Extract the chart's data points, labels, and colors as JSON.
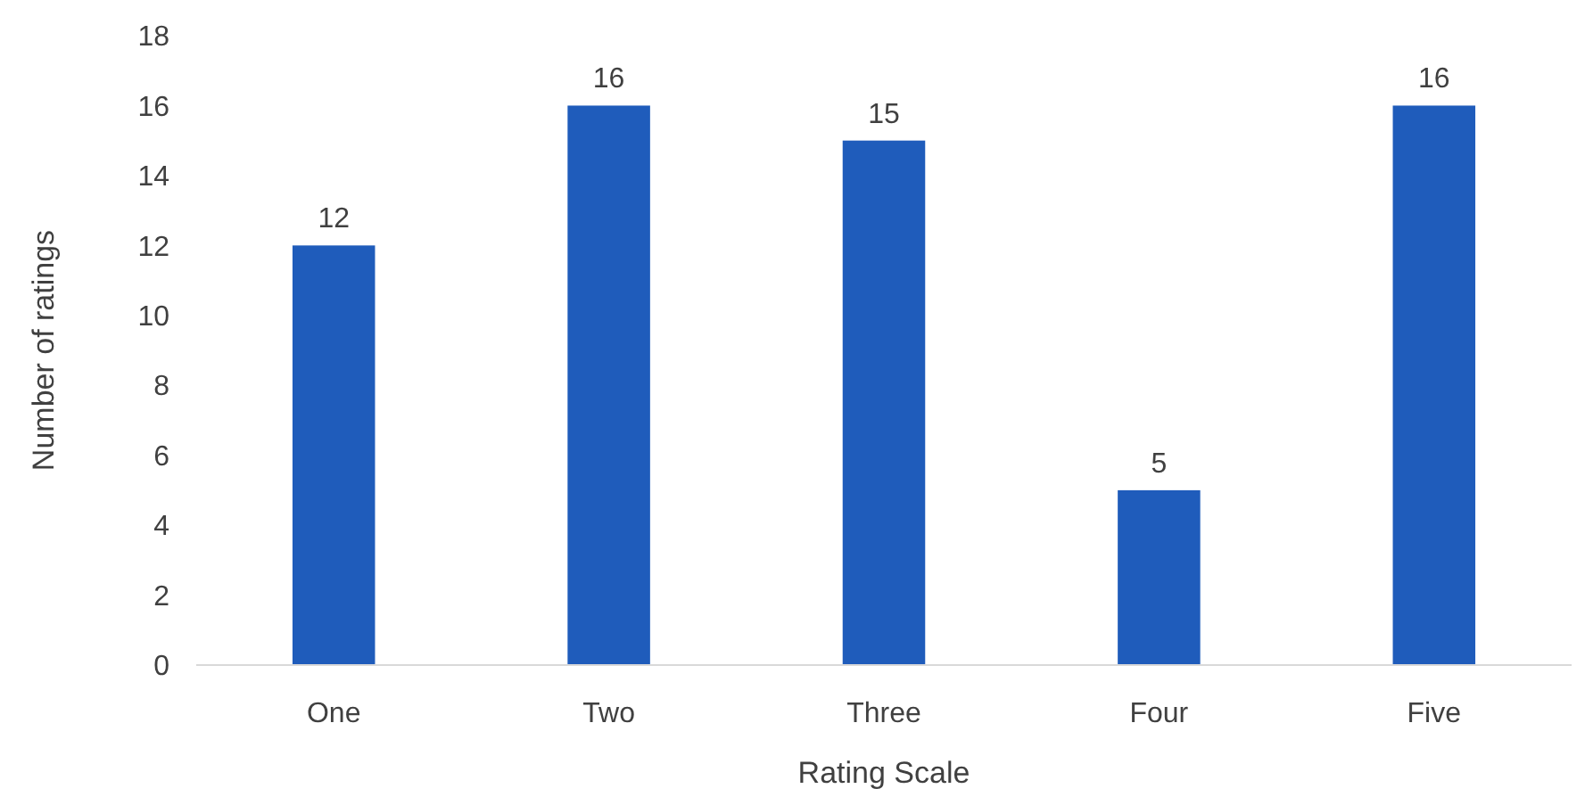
{
  "chart_data": {
    "type": "bar",
    "xlabel": "Rating Scale",
    "ylabel": "Number of ratings",
    "categories": [
      "One",
      "Two",
      "Three",
      "Four",
      "Five"
    ],
    "values": [
      12,
      16,
      15,
      5,
      16
    ],
    "color": "#1f5cbb",
    "ylim": [
      0,
      18
    ],
    "yticks": [
      0,
      2,
      4,
      6,
      8,
      10,
      12,
      14,
      16,
      18
    ],
    "grid": false,
    "data_labels": true
  }
}
